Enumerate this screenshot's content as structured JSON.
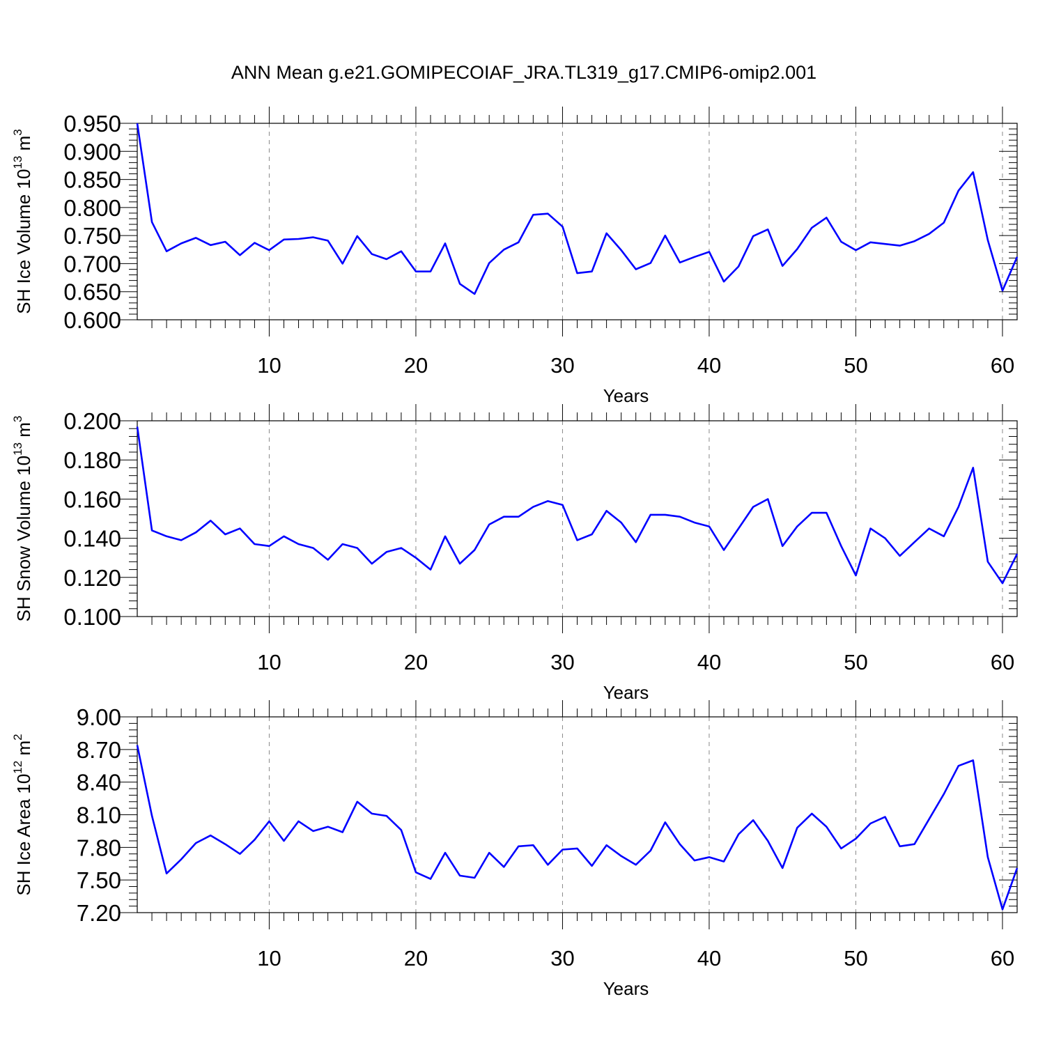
{
  "title": "ANN Mean g.e21.GOMIPECOIAF_JRA.TL319_g17.CMIP6-omip2.001",
  "colors": {
    "line": "#0000ff",
    "grid": "#888888",
    "axis": "#000000"
  },
  "chart_data": [
    {
      "type": "line",
      "ylabel": {
        "main": "SH Ice Volume 10",
        "exp": "13",
        "unit": " m",
        "unit_exp": "3"
      },
      "xlabel": "Years",
      "xlim": [
        1,
        61
      ],
      "ylim": [
        0.6,
        0.95
      ],
      "xticks": [
        10,
        20,
        30,
        40,
        50,
        60
      ],
      "yticks": [
        "0.600",
        "0.650",
        "0.700",
        "0.750",
        "0.800",
        "0.850",
        "0.900",
        "0.950"
      ],
      "grid_x": true,
      "x": [
        1,
        2,
        3,
        4,
        5,
        6,
        7,
        8,
        9,
        10,
        11,
        12,
        13,
        14,
        15,
        16,
        17,
        18,
        19,
        20,
        21,
        22,
        23,
        24,
        25,
        26,
        27,
        28,
        29,
        30,
        31,
        32,
        33,
        34,
        35,
        36,
        37,
        38,
        39,
        40,
        41,
        42,
        43,
        44,
        45,
        46,
        47,
        48,
        49,
        50,
        51,
        52,
        53,
        54,
        55,
        56,
        57,
        58,
        59,
        60,
        61
      ],
      "values": [
        0.95,
        0.774,
        0.722,
        0.736,
        0.746,
        0.733,
        0.739,
        0.715,
        0.737,
        0.724,
        0.743,
        0.744,
        0.747,
        0.741,
        0.7,
        0.749,
        0.717,
        0.708,
        0.722,
        0.686,
        0.686,
        0.736,
        0.664,
        0.646,
        0.701,
        0.725,
        0.738,
        0.787,
        0.789,
        0.766,
        0.683,
        0.686,
        0.754,
        0.724,
        0.69,
        0.701,
        0.75,
        0.702,
        0.712,
        0.721,
        0.668,
        0.695,
        0.749,
        0.761,
        0.696,
        0.726,
        0.764,
        0.782,
        0.739,
        0.724,
        0.738,
        0.735,
        0.732,
        0.74,
        0.753,
        0.773,
        0.83,
        0.863,
        0.742,
        0.652,
        0.712
      ]
    },
    {
      "type": "line",
      "ylabel": {
        "main": "SH Snow Volume 10",
        "exp": "13",
        "unit": " m",
        "unit_exp": "3"
      },
      "xlabel": "Years",
      "xlim": [
        1,
        61
      ],
      "ylim": [
        0.1,
        0.2
      ],
      "xticks": [
        10,
        20,
        30,
        40,
        50,
        60
      ],
      "yticks": [
        "0.100",
        "0.120",
        "0.140",
        "0.160",
        "0.180",
        "0.200"
      ],
      "grid_x": true,
      "x": [
        1,
        2,
        3,
        4,
        5,
        6,
        7,
        8,
        9,
        10,
        11,
        12,
        13,
        14,
        15,
        16,
        17,
        18,
        19,
        20,
        21,
        22,
        23,
        24,
        25,
        26,
        27,
        28,
        29,
        30,
        31,
        32,
        33,
        34,
        35,
        36,
        37,
        38,
        39,
        40,
        41,
        42,
        43,
        44,
        45,
        46,
        47,
        48,
        49,
        50,
        51,
        52,
        53,
        54,
        55,
        56,
        57,
        58,
        59,
        60,
        61
      ],
      "values": [
        0.197,
        0.144,
        0.141,
        0.139,
        0.143,
        0.149,
        0.142,
        0.145,
        0.137,
        0.136,
        0.141,
        0.137,
        0.135,
        0.129,
        0.137,
        0.135,
        0.127,
        0.133,
        0.135,
        0.13,
        0.124,
        0.141,
        0.127,
        0.134,
        0.147,
        0.151,
        0.151,
        0.156,
        0.159,
        0.157,
        0.139,
        0.142,
        0.154,
        0.148,
        0.138,
        0.152,
        0.152,
        0.151,
        0.148,
        0.146,
        0.134,
        0.145,
        0.156,
        0.16,
        0.136,
        0.146,
        0.153,
        0.153,
        0.136,
        0.121,
        0.145,
        0.14,
        0.131,
        0.138,
        0.145,
        0.141,
        0.156,
        0.176,
        0.128,
        0.117,
        0.132
      ]
    },
    {
      "type": "line",
      "ylabel": {
        "main": "SH Ice Area 10",
        "exp": "12",
        "unit": " m",
        "unit_exp": "2"
      },
      "xlabel": "Years",
      "xlim": [
        1,
        61
      ],
      "ylim": [
        7.2,
        9.0
      ],
      "xticks": [
        10,
        20,
        30,
        40,
        50,
        60
      ],
      "yticks": [
        "7.20",
        "7.50",
        "7.80",
        "8.10",
        "8.40",
        "8.70",
        "9.00"
      ],
      "grid_x": true,
      "x": [
        1,
        2,
        3,
        4,
        5,
        6,
        7,
        8,
        9,
        10,
        11,
        12,
        13,
        14,
        15,
        16,
        17,
        18,
        19,
        20,
        21,
        22,
        23,
        24,
        25,
        26,
        27,
        28,
        29,
        30,
        31,
        32,
        33,
        34,
        35,
        36,
        37,
        38,
        39,
        40,
        41,
        42,
        43,
        44,
        45,
        46,
        47,
        48,
        49,
        50,
        51,
        52,
        53,
        54,
        55,
        56,
        57,
        58,
        59,
        60,
        61
      ],
      "values": [
        8.74,
        8.09,
        7.56,
        7.69,
        7.84,
        7.91,
        7.83,
        7.74,
        7.87,
        8.04,
        7.86,
        8.04,
        7.95,
        7.99,
        7.94,
        8.22,
        8.11,
        8.09,
        7.96,
        7.57,
        7.51,
        7.75,
        7.54,
        7.52,
        7.75,
        7.62,
        7.81,
        7.82,
        7.64,
        7.78,
        7.79,
        7.63,
        7.82,
        7.72,
        7.64,
        7.77,
        8.03,
        7.83,
        7.68,
        7.71,
        7.67,
        7.92,
        8.05,
        7.86,
        7.61,
        7.98,
        8.11,
        7.99,
        7.79,
        7.88,
        8.02,
        8.08,
        7.81,
        7.83,
        8.06,
        8.29,
        8.55,
        8.6,
        7.71,
        7.23,
        7.61
      ]
    }
  ]
}
